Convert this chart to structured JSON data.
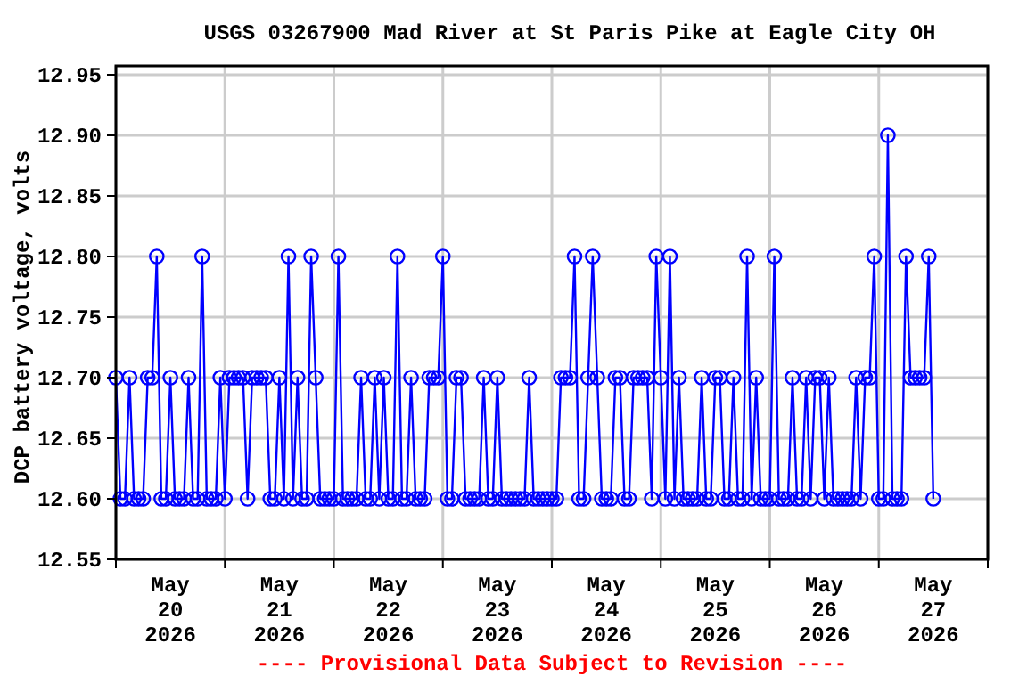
{
  "chart_data": {
    "type": "line",
    "title": "USGS 03267900 Mad River at St Paris Pike at Eagle City OH",
    "ylabel": "DCP battery voltage, volts",
    "annotations": [
      "---- Provisional Data Subject to Revision ----"
    ],
    "xlim": [
      "2026-05-20T00:00",
      "2026-05-28T00:00"
    ],
    "xticks": [
      {
        "value": "2026-05-20T00:00",
        "label": null
      },
      {
        "value": "2026-05-20T12:00",
        "label": "May\n20\n2026"
      },
      {
        "value": "2026-05-21T00:00",
        "label": null
      },
      {
        "value": "2026-05-21T12:00",
        "label": "May\n21\n2026"
      },
      {
        "value": "2026-05-22T00:00",
        "label": null
      },
      {
        "value": "2026-05-22T12:00",
        "label": "May\n22\n2026"
      },
      {
        "value": "2026-05-23T00:00",
        "label": null
      },
      {
        "value": "2026-05-23T12:00",
        "label": "May\n23\n2026"
      },
      {
        "value": "2026-05-24T00:00",
        "label": null
      },
      {
        "value": "2026-05-24T12:00",
        "label": "May\n24\n2026"
      },
      {
        "value": "2026-05-25T00:00",
        "label": null
      },
      {
        "value": "2026-05-25T12:00",
        "label": "May\n25\n2026"
      },
      {
        "value": "2026-05-26T00:00",
        "label": null
      },
      {
        "value": "2026-05-26T12:00",
        "label": "May\n26\n2026"
      },
      {
        "value": "2026-05-27T00:00",
        "label": null
      },
      {
        "value": "2026-05-27T12:00",
        "label": "May\n27\n2026"
      },
      {
        "value": "2026-05-28T00:00",
        "label": null
      }
    ],
    "ylim": [
      12.55,
      12.95
    ],
    "yticks": [
      {
        "value": 12.55,
        "label": "12.55"
      },
      {
        "value": 12.6,
        "label": "12.60"
      },
      {
        "value": 12.65,
        "label": "12.65"
      },
      {
        "value": 12.7,
        "label": "12.70"
      },
      {
        "value": 12.75,
        "label": "12.75"
      },
      {
        "value": 12.8,
        "label": "12.80"
      },
      {
        "value": 12.85,
        "label": "12.85"
      },
      {
        "value": 12.9,
        "label": "12.90"
      },
      {
        "value": 12.95,
        "label": "12.95"
      }
    ],
    "grid": true,
    "marker": "circle",
    "line_style": "solid",
    "series": [
      {
        "color": "#0000ff",
        "x": [
          "2026-05-20T00:00",
          "2026-05-20T01:00",
          "2026-05-20T02:00",
          "2026-05-20T03:00",
          "2026-05-20T04:00",
          "2026-05-20T05:00",
          "2026-05-20T06:00",
          "2026-05-20T07:00",
          "2026-05-20T08:00",
          "2026-05-20T09:00",
          "2026-05-20T10:00",
          "2026-05-20T11:00",
          "2026-05-20T12:00",
          "2026-05-20T13:00",
          "2026-05-20T14:00",
          "2026-05-20T15:00",
          "2026-05-20T16:00",
          "2026-05-20T17:00",
          "2026-05-20T18:00",
          "2026-05-20T19:00",
          "2026-05-20T20:00",
          "2026-05-20T21:00",
          "2026-05-20T22:00",
          "2026-05-20T23:00",
          "2026-05-21T00:00",
          "2026-05-21T01:00",
          "2026-05-21T02:00",
          "2026-05-21T03:00",
          "2026-05-21T04:00",
          "2026-05-21T05:00",
          "2026-05-21T06:00",
          "2026-05-21T07:00",
          "2026-05-21T08:00",
          "2026-05-21T09:00",
          "2026-05-21T10:00",
          "2026-05-21T11:00",
          "2026-05-21T12:00",
          "2026-05-21T13:00",
          "2026-05-21T14:00",
          "2026-05-21T15:00",
          "2026-05-21T16:00",
          "2026-05-21T17:00",
          "2026-05-21T18:00",
          "2026-05-21T19:00",
          "2026-05-21T20:00",
          "2026-05-21T21:00",
          "2026-05-21T22:00",
          "2026-05-21T23:00",
          "2026-05-22T00:00",
          "2026-05-22T01:00",
          "2026-05-22T02:00",
          "2026-05-22T03:00",
          "2026-05-22T04:00",
          "2026-05-22T05:00",
          "2026-05-22T06:00",
          "2026-05-22T07:00",
          "2026-05-22T08:00",
          "2026-05-22T09:00",
          "2026-05-22T10:00",
          "2026-05-22T11:00",
          "2026-05-22T12:00",
          "2026-05-22T13:00",
          "2026-05-22T14:00",
          "2026-05-22T15:00",
          "2026-05-22T16:00",
          "2026-05-22T17:00",
          "2026-05-22T18:00",
          "2026-05-22T19:00",
          "2026-05-22T20:00",
          "2026-05-22T21:00",
          "2026-05-22T22:00",
          "2026-05-22T23:00",
          "2026-05-23T00:00",
          "2026-05-23T01:00",
          "2026-05-23T02:00",
          "2026-05-23T03:00",
          "2026-05-23T04:00",
          "2026-05-23T05:00",
          "2026-05-23T06:00",
          "2026-05-23T07:00",
          "2026-05-23T08:00",
          "2026-05-23T09:00",
          "2026-05-23T10:00",
          "2026-05-23T11:00",
          "2026-05-23T12:00",
          "2026-05-23T13:00",
          "2026-05-23T14:00",
          "2026-05-23T15:00",
          "2026-05-23T16:00",
          "2026-05-23T17:00",
          "2026-05-23T18:00",
          "2026-05-23T19:00",
          "2026-05-23T20:00",
          "2026-05-23T21:00",
          "2026-05-23T22:00",
          "2026-05-23T23:00",
          "2026-05-24T00:00",
          "2026-05-24T01:00",
          "2026-05-24T02:00",
          "2026-05-24T03:00",
          "2026-05-24T04:00",
          "2026-05-24T05:00",
          "2026-05-24T06:00",
          "2026-05-24T07:00",
          "2026-05-24T08:00",
          "2026-05-24T09:00",
          "2026-05-24T10:00",
          "2026-05-24T11:00",
          "2026-05-24T12:00",
          "2026-05-24T13:00",
          "2026-05-24T14:00",
          "2026-05-24T15:00",
          "2026-05-24T16:00",
          "2026-05-24T17:00",
          "2026-05-24T18:00",
          "2026-05-24T19:00",
          "2026-05-24T20:00",
          "2026-05-24T21:00",
          "2026-05-24T22:00",
          "2026-05-24T23:00",
          "2026-05-25T00:00",
          "2026-05-25T01:00",
          "2026-05-25T02:00",
          "2026-05-25T03:00",
          "2026-05-25T04:00",
          "2026-05-25T05:00",
          "2026-05-25T06:00",
          "2026-05-25T07:00",
          "2026-05-25T08:00",
          "2026-05-25T09:00",
          "2026-05-25T10:00",
          "2026-05-25T11:00",
          "2026-05-25T12:00",
          "2026-05-25T13:00",
          "2026-05-25T14:00",
          "2026-05-25T15:00",
          "2026-05-25T16:00",
          "2026-05-25T17:00",
          "2026-05-25T18:00",
          "2026-05-25T19:00",
          "2026-05-25T20:00",
          "2026-05-25T21:00",
          "2026-05-25T22:00",
          "2026-05-25T23:00",
          "2026-05-26T00:00",
          "2026-05-26T01:00",
          "2026-05-26T02:00",
          "2026-05-26T03:00",
          "2026-05-26T04:00",
          "2026-05-26T05:00",
          "2026-05-26T06:00",
          "2026-05-26T07:00",
          "2026-05-26T08:00",
          "2026-05-26T09:00",
          "2026-05-26T10:00",
          "2026-05-26T11:00",
          "2026-05-26T12:00",
          "2026-05-26T13:00",
          "2026-05-26T14:00",
          "2026-05-26T15:00",
          "2026-05-26T16:00",
          "2026-05-26T17:00",
          "2026-05-26T18:00",
          "2026-05-26T19:00",
          "2026-05-26T20:00",
          "2026-05-26T21:00",
          "2026-05-26T22:00",
          "2026-05-26T23:00",
          "2026-05-27T00:00",
          "2026-05-27T01:00",
          "2026-05-27T02:00",
          "2026-05-27T03:00",
          "2026-05-27T04:00",
          "2026-05-27T05:00",
          "2026-05-27T06:00",
          "2026-05-27T07:00",
          "2026-05-27T08:00",
          "2026-05-27T09:00",
          "2026-05-27T10:00",
          "2026-05-27T11:00",
          "2026-05-27T12:00"
        ],
        "values": [
          12.7,
          12.6,
          12.6,
          12.7,
          12.6,
          12.6,
          12.6,
          12.7,
          12.7,
          12.8,
          12.6,
          12.6,
          12.7,
          12.6,
          12.6,
          12.6,
          12.7,
          12.6,
          12.6,
          12.8,
          12.6,
          12.6,
          12.6,
          12.7,
          12.6,
          12.7,
          12.7,
          12.7,
          12.7,
          12.6,
          12.7,
          12.7,
          12.7,
          12.7,
          12.6,
          12.6,
          12.7,
          12.6,
          12.8,
          12.6,
          12.7,
          12.6,
          12.6,
          12.8,
          12.7,
          12.6,
          12.6,
          12.6,
          12.6,
          12.8,
          12.6,
          12.6,
          12.6,
          12.6,
          12.7,
          12.6,
          12.6,
          12.7,
          12.6,
          12.7,
          12.6,
          12.6,
          12.8,
          12.6,
          12.6,
          12.7,
          12.6,
          12.6,
          12.6,
          12.7,
          12.7,
          12.7,
          12.8,
          12.6,
          12.6,
          12.7,
          12.7,
          12.6,
          12.6,
          12.6,
          12.6,
          12.7,
          12.6,
          12.6,
          12.7,
          12.6,
          12.6,
          12.6,
          12.6,
          12.6,
          12.6,
          12.7,
          12.6,
          12.6,
          12.6,
          12.6,
          12.6,
          12.6,
          12.7,
          12.7,
          12.7,
          12.8,
          12.6,
          12.6,
          12.7,
          12.8,
          12.7,
          12.6,
          12.6,
          12.6,
          12.7,
          12.7,
          12.6,
          12.6,
          12.7,
          12.7,
          12.7,
          12.7,
          12.6,
          12.8,
          12.7,
          12.6,
          12.8,
          12.6,
          12.7,
          12.6,
          12.6,
          12.6,
          12.6,
          12.7,
          12.6,
          12.6,
          12.7,
          12.7,
          12.6,
          12.6,
          12.7,
          12.6,
          12.6,
          12.8,
          12.6,
          12.7,
          12.6,
          12.6,
          12.6,
          12.8,
          12.6,
          12.6,
          12.6,
          12.7,
          12.6,
          12.6,
          12.7,
          12.6,
          12.7,
          12.7,
          12.6,
          12.7,
          12.6,
          12.6,
          12.6,
          12.6,
          12.6,
          12.7,
          12.6,
          12.7,
          12.7,
          12.8,
          12.6,
          12.6,
          12.9,
          12.6,
          12.6,
          12.6,
          12.8,
          12.7,
          12.7,
          12.7,
          12.7,
          12.8,
          12.6
        ]
      }
    ]
  }
}
